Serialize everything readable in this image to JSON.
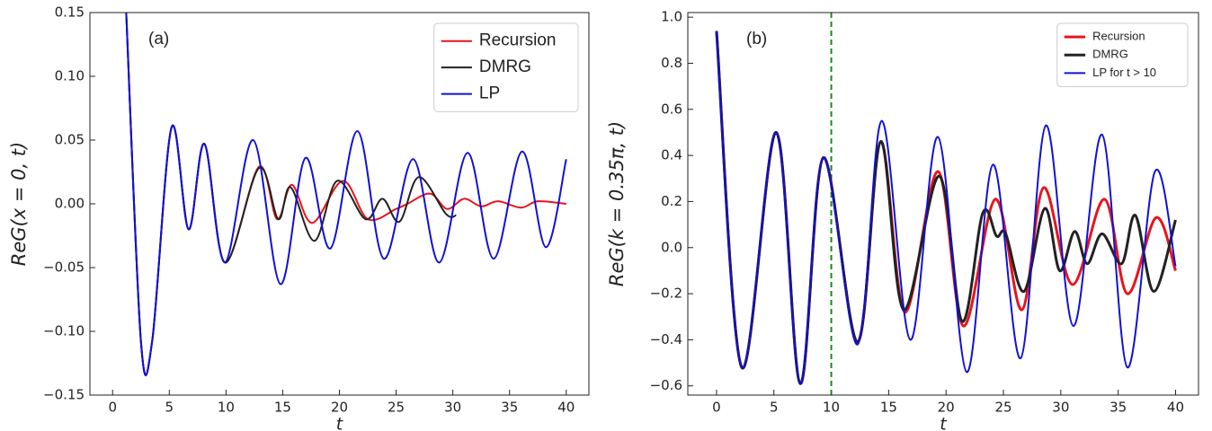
{
  "chart_data": [
    {
      "type": "line",
      "annotation": "(a)",
      "xlabel": "t",
      "ylabel": "ReG(x = 0, t)",
      "xlim": [
        -2,
        42
      ],
      "ylim": [
        -0.15,
        0.15
      ],
      "xticks": [
        0,
        5,
        10,
        15,
        20,
        25,
        30,
        35,
        40
      ],
      "yticks": [
        {
          "value": -0.15,
          "label": "−0.15"
        },
        {
          "value": -0.1,
          "label": "−0.10"
        },
        {
          "value": -0.05,
          "label": "−0.05"
        },
        {
          "value": 0,
          "label": "0.00"
        },
        {
          "value": 0.05,
          "label": "0.05"
        },
        {
          "value": 0.1,
          "label": "0.10"
        },
        {
          "value": 0.15,
          "label": "0.15"
        }
      ],
      "legend": "upper right",
      "series": [
        {
          "name": "Recursion",
          "color": "#e8141a",
          "width": 2,
          "x": [
            1.2,
            2.5,
            3.5,
            5.2,
            6.7,
            8.1,
            9.9,
            12.9,
            14.5,
            15.8,
            17.6,
            20.3,
            22.5,
            25,
            26,
            28,
            29.5,
            31,
            32.5,
            34,
            36,
            37.5,
            40
          ],
          "values": [
            0.15,
            -0.108,
            -0.107,
            0.06,
            -0.02,
            0.047,
            -0.046,
            0.029,
            -0.012,
            0.015,
            -0.015,
            0.018,
            -0.012,
            -0.004,
            0,
            0.008,
            -0.004,
            0.004,
            -0.002,
            0.002,
            -0.003,
            0.002,
            0
          ]
        },
        {
          "name": "DMRG",
          "color": "#222222",
          "width": 2,
          "x": [
            1.2,
            2.5,
            3.5,
            5.2,
            6.7,
            8.1,
            9.9,
            12.9,
            14.6,
            15.7,
            17.8,
            19.8,
            22.3,
            23.8,
            25.3,
            27,
            29.4,
            30.3
          ],
          "values": [
            0.15,
            -0.108,
            -0.107,
            0.06,
            -0.02,
            0.047,
            -0.046,
            0.028,
            -0.012,
            0.013,
            -0.029,
            0.018,
            -0.012,
            0.004,
            -0.014,
            0.021,
            -0.008,
            -0.009
          ]
        },
        {
          "name": "LP",
          "color": "#1010d8",
          "width": 2,
          "x": [
            1.2,
            2.5,
            3.5,
            5.2,
            6.7,
            8.1,
            9.9,
            12.4,
            14.8,
            17,
            19.2,
            21.6,
            23.9,
            26.5,
            28.8,
            31.3,
            33.6,
            36.1,
            38.2,
            40
          ],
          "values": [
            0.15,
            -0.108,
            -0.107,
            0.06,
            -0.02,
            0.047,
            -0.046,
            0.05,
            -0.063,
            0.036,
            -0.035,
            0.057,
            -0.043,
            0.035,
            -0.046,
            0.04,
            -0.043,
            0.041,
            -0.034,
            0.035
          ]
        }
      ]
    },
    {
      "type": "line",
      "annotation": "(b)",
      "xlabel": "t",
      "ylabel": "ReG(k = 0.35π, t)",
      "xlim": [
        -2.5,
        42
      ],
      "ylim": [
        -0.64,
        1.02
      ],
      "xticks": [
        0,
        5,
        10,
        15,
        20,
        25,
        30,
        35,
        40
      ],
      "yticks": [
        {
          "value": -0.6,
          "label": "−0.6"
        },
        {
          "value": -0.4,
          "label": "−0.4"
        },
        {
          "value": -0.2,
          "label": "−0.2"
        },
        {
          "value": 0,
          "label": "0.0"
        },
        {
          "value": 0.2,
          "label": "0.2"
        },
        {
          "value": 0.4,
          "label": "0.4"
        },
        {
          "value": 0.6,
          "label": "0.6"
        },
        {
          "value": 0.8,
          "label": "0.8"
        },
        {
          "value": 1,
          "label": "1.0"
        }
      ],
      "legend": "upper right",
      "vline": {
        "x": 10,
        "color": "#1a8a1a"
      },
      "series": [
        {
          "name": "Recursion",
          "color": "#e8141a",
          "width": 3,
          "x": [
            0,
            2.2,
            5.2,
            7.3,
            9.3,
            12.3,
            14.3,
            16.4,
            19.3,
            21.5,
            24.3,
            26.6,
            28.5,
            31,
            33.8,
            35.8,
            38.3,
            40
          ],
          "values": [
            0.94,
            -0.52,
            0.5,
            -0.59,
            0.39,
            -0.41,
            0.46,
            -0.28,
            0.33,
            -0.34,
            0.21,
            -0.27,
            0.26,
            -0.16,
            0.21,
            -0.2,
            0.13,
            -0.1
          ]
        },
        {
          "name": "DMRG",
          "color": "#222222",
          "width": 3,
          "x": [
            0,
            2.2,
            5.2,
            7.3,
            9.3,
            12.3,
            14.3,
            16.3,
            19.4,
            21.4,
            23.2,
            24.4,
            25.2,
            26.8,
            28.6,
            29.9,
            31.2,
            32.3,
            33.6,
            35.3,
            36.5,
            38.1,
            40
          ],
          "values": [
            0.94,
            -0.52,
            0.5,
            -0.59,
            0.39,
            -0.41,
            0.46,
            -0.27,
            0.31,
            -0.32,
            0.15,
            0.05,
            0.06,
            -0.19,
            0.17,
            -0.1,
            0.07,
            -0.07,
            0.06,
            -0.07,
            0.14,
            -0.19,
            0.12
          ]
        },
        {
          "name": "LP for t > 10",
          "color": "#1010d8",
          "width": 2,
          "x": [
            0,
            2.2,
            5.2,
            7.3,
            9.3,
            12.3,
            14.4,
            16.9,
            19.3,
            21.8,
            24.1,
            26.5,
            28.7,
            31.1,
            33.6,
            35.8,
            38.2,
            40
          ],
          "values": [
            0.94,
            -0.52,
            0.5,
            -0.59,
            0.39,
            -0.42,
            0.55,
            -0.4,
            0.48,
            -0.54,
            0.36,
            -0.48,
            0.53,
            -0.34,
            0.49,
            -0.52,
            0.33,
            -0.08
          ]
        }
      ]
    }
  ]
}
